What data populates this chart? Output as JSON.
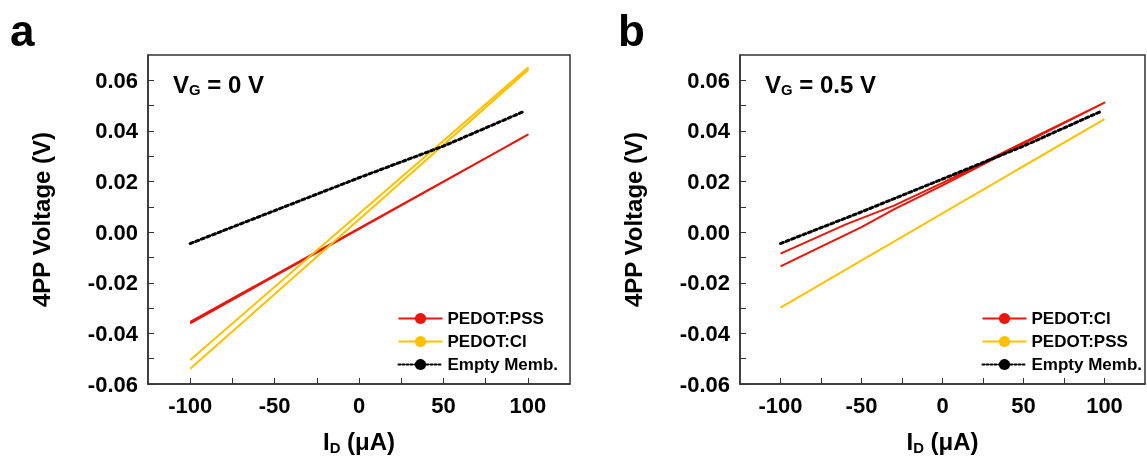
{
  "chart_data": [
    {
      "type": "line",
      "annotations": [
        "a",
        "V$_{G}$ = 0 V"
      ],
      "xlabel": "I$_{D}$ (μA)",
      "ylabel": "4PP Voltage (V)",
      "xlim": [
        -125,
        125
      ],
      "ylim": [
        -0.06,
        0.07
      ],
      "xticks": [
        -100,
        {
          "value": -75,
          "label": null
        },
        -50,
        {
          "value": -25,
          "label": null
        },
        0,
        {
          "value": 25,
          "label": null
        },
        50,
        {
          "value": 75,
          "label": null
        },
        100
      ],
      "yticks": [
        -0.06,
        {
          "value": -0.05,
          "label": null
        },
        -0.04,
        {
          "value": -0.03,
          "label": null
        },
        -0.02,
        {
          "value": -0.01,
          "label": null
        },
        {
          "value": 0,
          "label": "0.00"
        },
        {
          "value": 0.01,
          "label": null
        },
        0.02,
        {
          "value": 0.03,
          "label": null
        },
        0.04,
        {
          "value": 0.05,
          "label": null
        },
        0.06
      ],
      "legend": "bottom right",
      "marker": "none",
      "series": [
        {
          "name": "PEDOT:PSS",
          "color": "#e8160c",
          "line_style": "solid",
          "x": [
            -100,
            100,
            -100
          ],
          "values": [
            -0.036,
            0.0385,
            -0.0355
          ]
        },
        {
          "name": "PEDOT:Cl",
          "color": "#ffc000",
          "line_style": "solid",
          "x": [
            -100,
            100,
            100,
            -100
          ],
          "values": [
            -0.054,
            0.064,
            0.065,
            -0.0505
          ]
        },
        {
          "name": "Empty Memb.",
          "color": "#000000",
          "line_style": "dotted",
          "x": [
            -100,
            -50,
            0,
            50,
            97
          ],
          "values": [
            -0.0045,
            0.0085,
            0.0215,
            0.034,
            0.0475
          ]
        }
      ]
    },
    {
      "type": "line",
      "annotations": [
        "b",
        "V$_{G}$ = 0.5 V"
      ],
      "xlabel": "I$_{D}$ (μA)",
      "ylabel": "4PP Voltage (V)",
      "xlim": [
        -125,
        125
      ],
      "ylim": [
        -0.06,
        0.07
      ],
      "xticks": [
        -100,
        {
          "value": -75,
          "label": null
        },
        -50,
        {
          "value": -25,
          "label": null
        },
        0,
        {
          "value": 25,
          "label": null
        },
        50,
        {
          "value": 75,
          "label": null
        },
        100
      ],
      "yticks": [
        -0.06,
        {
          "value": -0.05,
          "label": null
        },
        -0.04,
        {
          "value": -0.03,
          "label": null
        },
        -0.02,
        {
          "value": -0.01,
          "label": null
        },
        {
          "value": 0,
          "label": "0.00"
        },
        {
          "value": 0.01,
          "label": null
        },
        0.02,
        {
          "value": 0.03,
          "label": null
        },
        0.04,
        {
          "value": 0.05,
          "label": null
        },
        0.06
      ],
      "legend": "bottom right",
      "marker": "none",
      "series": [
        {
          "name": "PEDOT:Cl",
          "color": "#e8160c",
          "line_style": "solid",
          "x": [
            -100,
            -50,
            -30,
            0,
            50,
            100,
            50,
            0,
            -30,
            -60,
            -100
          ],
          "values": [
            -0.0135,
            0.002,
            0.009,
            0.0185,
            0.035,
            0.0512,
            0.0355,
            0.0195,
            0.0105,
            0.003,
            -0.0085
          ]
        },
        {
          "name": "PEDOT:PSS",
          "color": "#ffc000",
          "line_style": "solid",
          "x": [
            -100,
            100
          ],
          "values": [
            -0.0298,
            0.0447
          ]
        },
        {
          "name": "Empty Memb.",
          "color": "#000000",
          "line_style": "dotted",
          "x": [
            -100,
            -50,
            0,
            50,
            97
          ],
          "values": [
            -0.0045,
            0.008,
            0.021,
            0.034,
            0.0475
          ]
        }
      ]
    }
  ]
}
